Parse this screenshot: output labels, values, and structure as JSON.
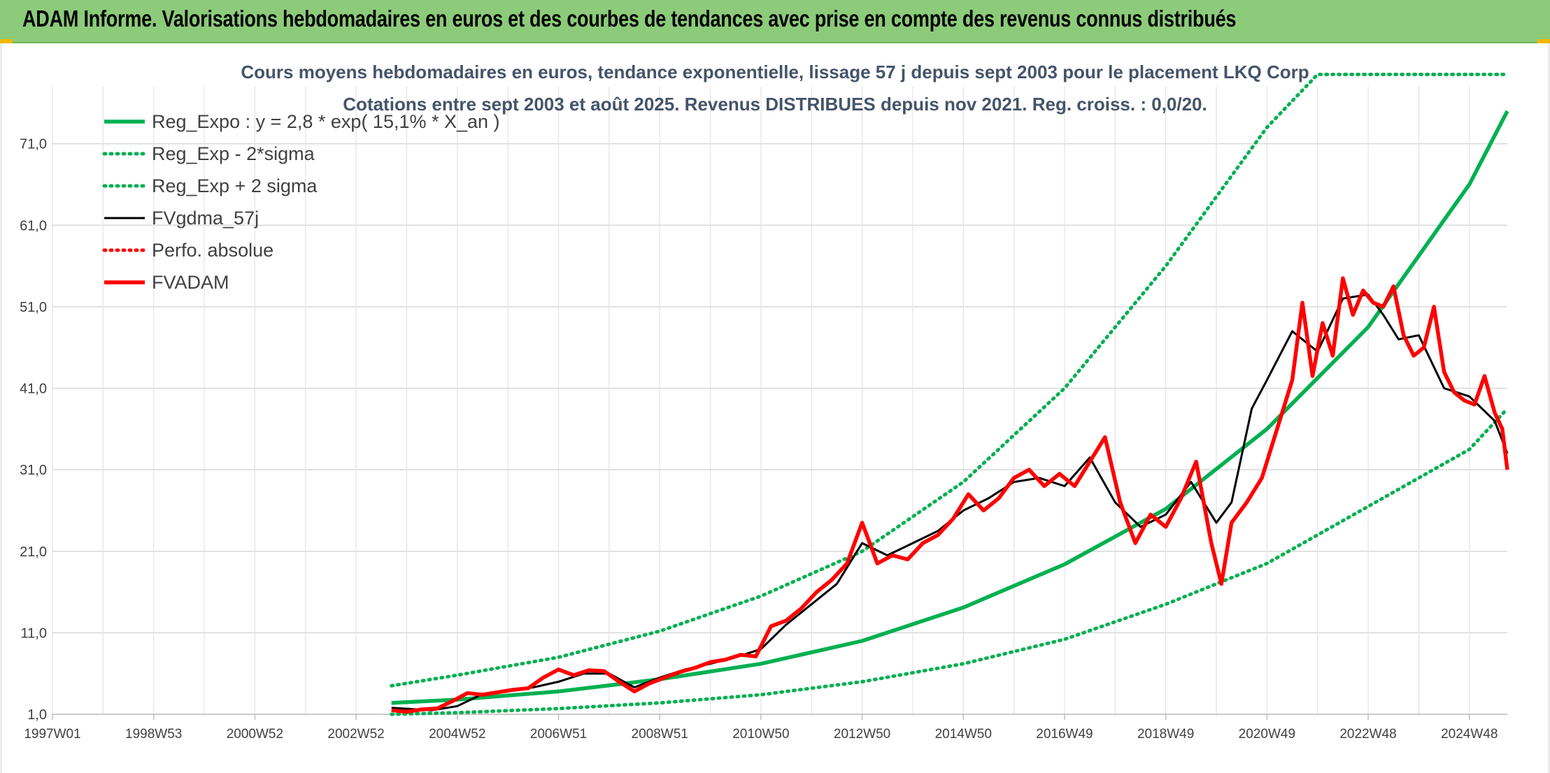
{
  "header": {
    "title": "ADAM Informe. Valorisations hebdomadaires en euros et des courbes de tendances avec prise en compte des revenus connus distribués"
  },
  "colors": {
    "header_bg": "#8ccb7a",
    "reg_expo": "#00b050",
    "sigma_bands": "#00b050",
    "gdma": "#000000",
    "fvadam": "#ff0000",
    "perfo": "#ff0000"
  },
  "chart_data": {
    "type": "line",
    "title_lines": [
      "Cours moyens hebdomadaires en euros, tendance exponentielle, lissage 57 j depuis sept 2003 pour le placement LKQ Corp",
      "Cotations entre sept 2003 et août 2025. Revenus DISTRIBUES depuis nov 2021. Reg. croiss. : 0,0/20."
    ],
    "x_range_years": [
      1997.0,
      2025.75
    ],
    "x_tick_labels": [
      "1997W01",
      "1998W53",
      "2000W52",
      "2002W52",
      "2004W52",
      "2006W51",
      "2008W51",
      "2010W50",
      "2012W50",
      "2014W50",
      "2016W49",
      "2018W49",
      "2020W49",
      "2022W48",
      "2024W48"
    ],
    "ylim": [
      1.0,
      78.0
    ],
    "y_ticks": [
      1.0,
      11.0,
      21.0,
      31.0,
      41.0,
      51.0,
      61.0,
      71.0
    ],
    "y_tick_labels": [
      "1,0",
      "11,0",
      "21,0",
      "31,0",
      "41,0",
      "51,0",
      "61,0",
      "71,0"
    ],
    "grid": true,
    "legend_position": "top-left",
    "series": [
      {
        "name": "Reg_Expo : y = 2,8 * exp( 15,1% *  X_an )",
        "style": "solid-thick",
        "color": "#00b050",
        "x": [
          2003.7,
          2005,
          2007,
          2009,
          2011,
          2013,
          2015,
          2017,
          2019,
          2021,
          2023,
          2025,
          2025.75
        ],
        "y": [
          2.4,
          2.8,
          3.8,
          5.3,
          7.2,
          10.0,
          14.1,
          19.4,
          26.2,
          36.0,
          48.5,
          66.0,
          75.0
        ]
      },
      {
        "name": "Reg_Exp - 2*sigma",
        "style": "dotted",
        "color": "#00b050",
        "x": [
          2003.7,
          2005,
          2007,
          2009,
          2011,
          2013,
          2015,
          2017,
          2019,
          2021,
          2023,
          2025,
          2025.75
        ],
        "y": [
          1.0,
          1.2,
          1.7,
          2.4,
          3.4,
          5.0,
          7.2,
          10.2,
          14.5,
          19.5,
          26.5,
          33.5,
          38.5
        ]
      },
      {
        "name": "Reg_Exp + 2 sigma",
        "style": "dotted",
        "color": "#00b050",
        "x": [
          2003.7,
          2005,
          2007,
          2009,
          2011,
          2013,
          2015,
          2017,
          2019,
          2021,
          2022.0,
          2025.75
        ],
        "y": [
          4.5,
          5.8,
          8.0,
          11.2,
          15.5,
          21.0,
          29.5,
          41.0,
          56.0,
          73.0,
          80.0,
          80.0
        ]
      },
      {
        "name": "FVgdma_57j",
        "style": "solid",
        "color": "#000000",
        "x": [
          2003.7,
          2004.5,
          2005.0,
          2005.5,
          2006.0,
          2006.5,
          2007.0,
          2007.5,
          2008.0,
          2008.5,
          2009.0,
          2009.5,
          2010.0,
          2010.5,
          2011.0,
          2011.5,
          2012.0,
          2012.5,
          2013.0,
          2013.5,
          2014.0,
          2014.5,
          2015.0,
          2015.5,
          2016.0,
          2016.5,
          2017.0,
          2017.5,
          2018.0,
          2018.5,
          2019.0,
          2019.5,
          2020.0,
          2020.3,
          2020.7,
          2021.0,
          2021.5,
          2022.0,
          2022.5,
          2023.0,
          2023.3,
          2023.6,
          2024.0,
          2024.5,
          2025.0,
          2025.5,
          2025.75
        ],
        "y": [
          1.8,
          1.5,
          2.0,
          3.5,
          4.0,
          4.3,
          5.0,
          6.0,
          6.0,
          4.3,
          5.5,
          6.5,
          7.2,
          8.0,
          9.0,
          12.0,
          14.5,
          17.0,
          22.0,
          20.5,
          22.0,
          23.5,
          26.0,
          27.5,
          29.5,
          30.0,
          29.0,
          32.5,
          27.0,
          24.0,
          25.5,
          29.5,
          24.5,
          27.0,
          38.5,
          42.0,
          48.0,
          45.5,
          52.0,
          52.5,
          50.0,
          47.0,
          47.5,
          41.0,
          40.0,
          37.0,
          33.0
        ]
      },
      {
        "name": "Perfo. absolue",
        "style": "dotted",
        "color": "#ff0000",
        "x": [],
        "y": []
      },
      {
        "name": "FVADAM",
        "style": "solid-thick",
        "color": "#ff0000",
        "x": [
          2003.7,
          2004.0,
          2004.3,
          2004.6,
          2004.9,
          2005.2,
          2005.5,
          2005.8,
          2006.1,
          2006.4,
          2006.7,
          2007.0,
          2007.3,
          2007.6,
          2007.9,
          2008.2,
          2008.5,
          2008.8,
          2009.1,
          2009.4,
          2009.7,
          2010.0,
          2010.3,
          2010.6,
          2010.9,
          2011.2,
          2011.5,
          2011.8,
          2012.1,
          2012.4,
          2012.7,
          2013.0,
          2013.3,
          2013.6,
          2013.9,
          2014.2,
          2014.5,
          2014.8,
          2015.1,
          2015.4,
          2015.7,
          2016.0,
          2016.3,
          2016.6,
          2016.9,
          2017.2,
          2017.5,
          2017.8,
          2018.1,
          2018.4,
          2018.7,
          2019.0,
          2019.3,
          2019.6,
          2019.9,
          2020.1,
          2020.3,
          2020.6,
          2020.9,
          2021.2,
          2021.5,
          2021.7,
          2021.9,
          2022.1,
          2022.3,
          2022.5,
          2022.7,
          2022.9,
          2023.1,
          2023.3,
          2023.5,
          2023.7,
          2023.9,
          2024.1,
          2024.3,
          2024.5,
          2024.7,
          2024.9,
          2025.1,
          2025.3,
          2025.5,
          2025.65,
          2025.75
        ],
        "y": [
          1.5,
          1.3,
          1.6,
          1.7,
          2.6,
          3.6,
          3.4,
          3.7,
          4.0,
          4.2,
          5.5,
          6.5,
          5.8,
          6.4,
          6.3,
          5.0,
          3.8,
          4.8,
          5.5,
          6.2,
          6.7,
          7.4,
          7.7,
          8.3,
          8.1,
          11.8,
          12.5,
          14.0,
          16.0,
          17.5,
          19.5,
          24.5,
          19.5,
          20.5,
          20.0,
          22.0,
          23.0,
          25.0,
          28.0,
          26.0,
          27.5,
          30.0,
          31.0,
          29.0,
          30.5,
          29.0,
          32.0,
          35.0,
          27.0,
          22.0,
          25.5,
          24.0,
          27.5,
          32.0,
          22.0,
          17.0,
          24.5,
          27.0,
          30.0,
          36.0,
          42.0,
          51.5,
          42.5,
          49.0,
          45.0,
          54.5,
          50.0,
          53.0,
          51.5,
          51.0,
          53.5,
          47.5,
          45.0,
          46.0,
          51.0,
          43.0,
          40.5,
          39.5,
          39.0,
          42.5,
          38.0,
          36.0,
          31.0
        ]
      }
    ]
  }
}
